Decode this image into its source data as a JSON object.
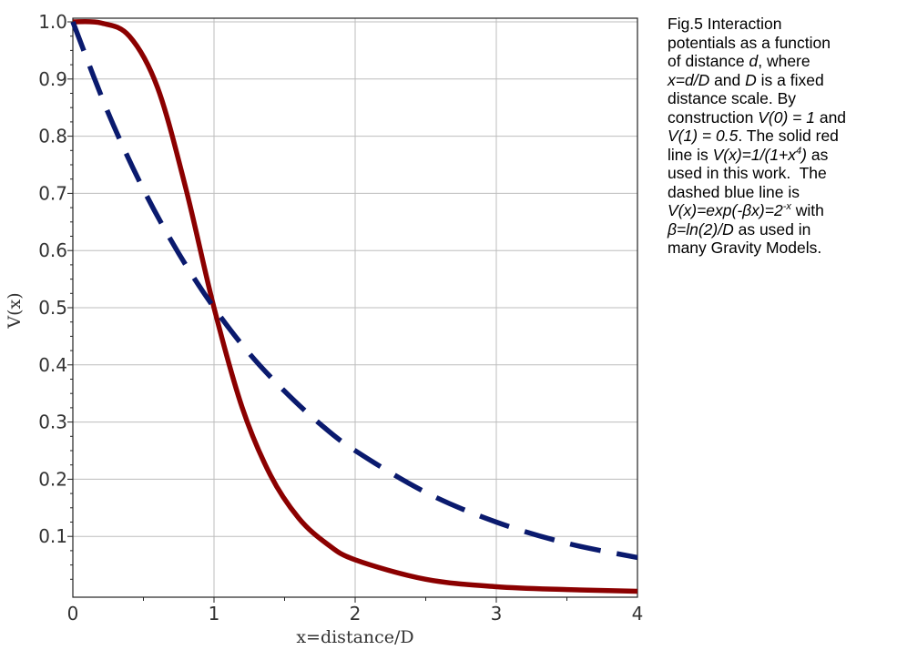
{
  "chart_data": {
    "type": "line",
    "xlabel": "x=distance/D",
    "ylabel": "V(x)",
    "xlim": [
      0,
      4
    ],
    "ylim": [
      0,
      1.0
    ],
    "grid": true,
    "x_ticks": [
      "0",
      "1",
      "2",
      "3",
      "4"
    ],
    "y_ticks": [
      "0.1",
      "0.2",
      "0.3",
      "0.4",
      "0.5",
      "0.6",
      "0.7",
      "0.8",
      "0.9",
      "1.0"
    ],
    "series": [
      {
        "style": "solid",
        "color": "#8b0000",
        "x": [
          0,
          0.2,
          0.4,
          0.6,
          0.8,
          1.0,
          1.2,
          1.4,
          1.6,
          1.8,
          2.0,
          2.5,
          3.0,
          3.5,
          4.0
        ],
        "y": [
          1.0,
          0.998,
          0.975,
          0.885,
          0.709,
          0.5,
          0.325,
          0.207,
          0.132,
          0.087,
          0.059,
          0.025,
          0.012,
          0.007,
          0.004
        ]
      },
      {
        "style": "dashed",
        "color": "#0a1a6e",
        "x": [
          0,
          0.25,
          0.5,
          0.75,
          1.0,
          1.25,
          1.5,
          1.75,
          2.0,
          2.5,
          3.0,
          3.5,
          4.0
        ],
        "y": [
          1.0,
          0.841,
          0.707,
          0.595,
          0.5,
          0.42,
          0.354,
          0.297,
          0.25,
          0.177,
          0.125,
          0.088,
          0.063
        ]
      }
    ]
  },
  "caption": {
    "line1": "Fig.5 Interaction",
    "line2": "potentials as a function",
    "line3_a": "of distance ",
    "line3_b": "d",
    "line3_c": ", where",
    "line4_a": "x=d/D",
    "line4_b": " and ",
    "line4_c": "D",
    "line4_d": " is a fixed",
    "line5": "distance scale. By",
    "line6_a": "construction ",
    "line6_b": "V(0) = 1",
    "line6_c": " and",
    "line7_a": "V(1) = 0.5",
    "line7_b": ". The solid red",
    "line8_a": "line is ",
    "line8_b": "V(x)=1/(1+x",
    "line8_sup": "4",
    "line8_c": ")",
    "line8_d": " as",
    "line9": "used in this work.  The",
    "line10": "dashed blue line is",
    "line11_a": "V(x)=exp(-βx)=2",
    "line11_sup": "-x",
    "line11_b": " with",
    "line12_a": "β=ln(2)/D",
    "line12_b": " as used in",
    "line13": "many Gravity Models."
  }
}
